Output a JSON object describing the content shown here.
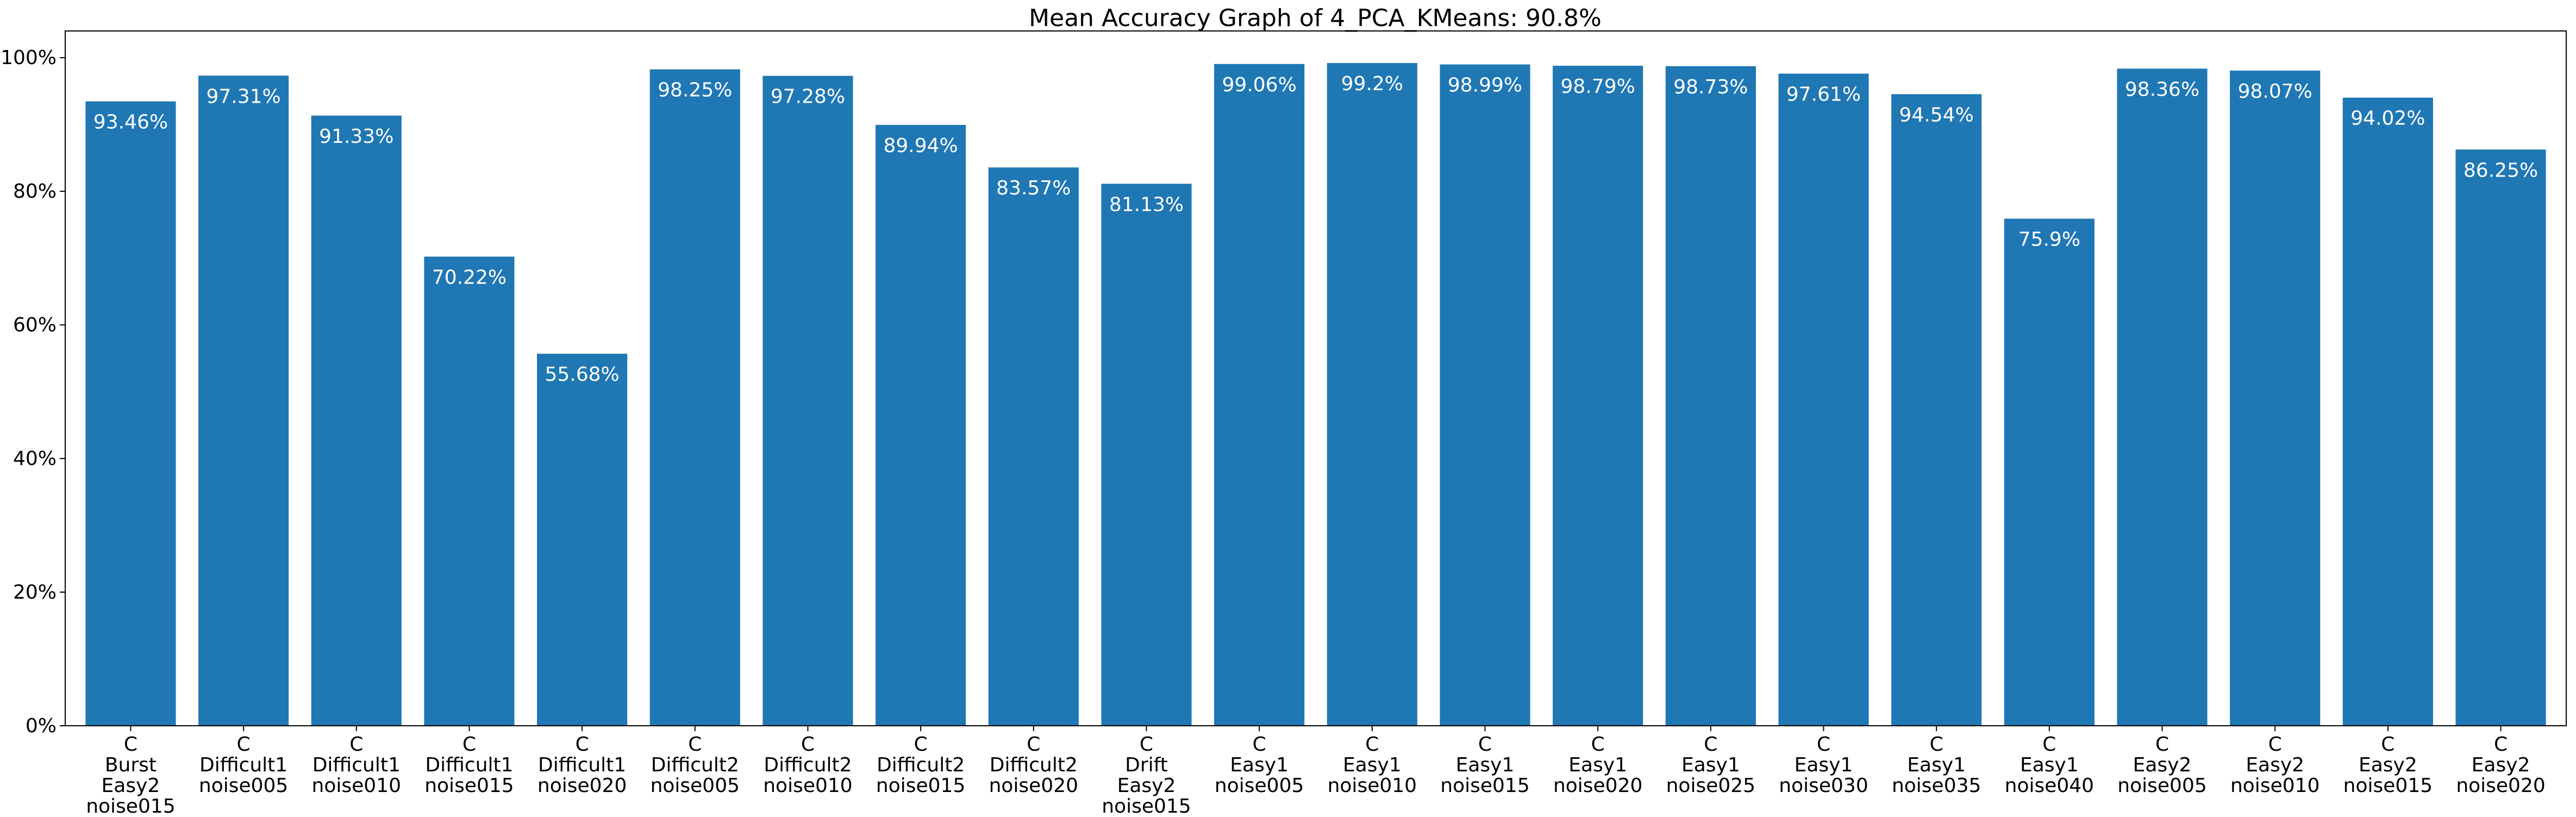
{
  "chart_data": {
    "type": "bar",
    "title": "Mean Accuracy Graph of 4_PCA_KMeans: 90.8%",
    "xlabel": "",
    "ylabel": "",
    "ylim": [
      0,
      104
    ],
    "yticks": [
      0,
      20,
      40,
      60,
      80,
      100
    ],
    "ytick_labels": [
      "0%",
      "20%",
      "40%",
      "60%",
      "80%",
      "100%"
    ],
    "bar_color": "#1f77b4",
    "label_color": "#ffffff",
    "grid": false,
    "categories": [
      [
        "C",
        "Burst",
        "Easy2",
        "noise015"
      ],
      [
        "C",
        "Difficult1",
        "noise005"
      ],
      [
        "C",
        "Difficult1",
        "noise010"
      ],
      [
        "C",
        "Difficult1",
        "noise015"
      ],
      [
        "C",
        "Difficult1",
        "noise020"
      ],
      [
        "C",
        "Difficult2",
        "noise005"
      ],
      [
        "C",
        "Difficult2",
        "noise010"
      ],
      [
        "C",
        "Difficult2",
        "noise015"
      ],
      [
        "C",
        "Difficult2",
        "noise020"
      ],
      [
        "C",
        "Drift",
        "Easy2",
        "noise015"
      ],
      [
        "C",
        "Easy1",
        "noise005"
      ],
      [
        "C",
        "Easy1",
        "noise010"
      ],
      [
        "C",
        "Easy1",
        "noise015"
      ],
      [
        "C",
        "Easy1",
        "noise020"
      ],
      [
        "C",
        "Easy1",
        "noise025"
      ],
      [
        "C",
        "Easy1",
        "noise030"
      ],
      [
        "C",
        "Easy1",
        "noise035"
      ],
      [
        "C",
        "Easy1",
        "noise040"
      ],
      [
        "C",
        "Easy2",
        "noise005"
      ],
      [
        "C",
        "Easy2",
        "noise010"
      ],
      [
        "C",
        "Easy2",
        "noise015"
      ],
      [
        "C",
        "Easy2",
        "noise020"
      ]
    ],
    "values": [
      93.46,
      97.31,
      91.33,
      70.22,
      55.68,
      98.25,
      97.28,
      89.94,
      83.57,
      81.13,
      99.06,
      99.2,
      98.99,
      98.79,
      98.73,
      97.61,
      94.54,
      75.9,
      98.36,
      98.07,
      94.02,
      86.25
    ],
    "value_labels": [
      "93.46%",
      "97.31%",
      "91.33%",
      "70.22%",
      "55.68%",
      "98.25%",
      "97.28%",
      "89.94%",
      "83.57%",
      "81.13%",
      "99.06%",
      "99.2%",
      "98.99%",
      "98.79%",
      "98.73%",
      "97.61%",
      "94.54%",
      "75.9%",
      "98.36%",
      "98.07%",
      "94.02%",
      "86.25%"
    ]
  }
}
